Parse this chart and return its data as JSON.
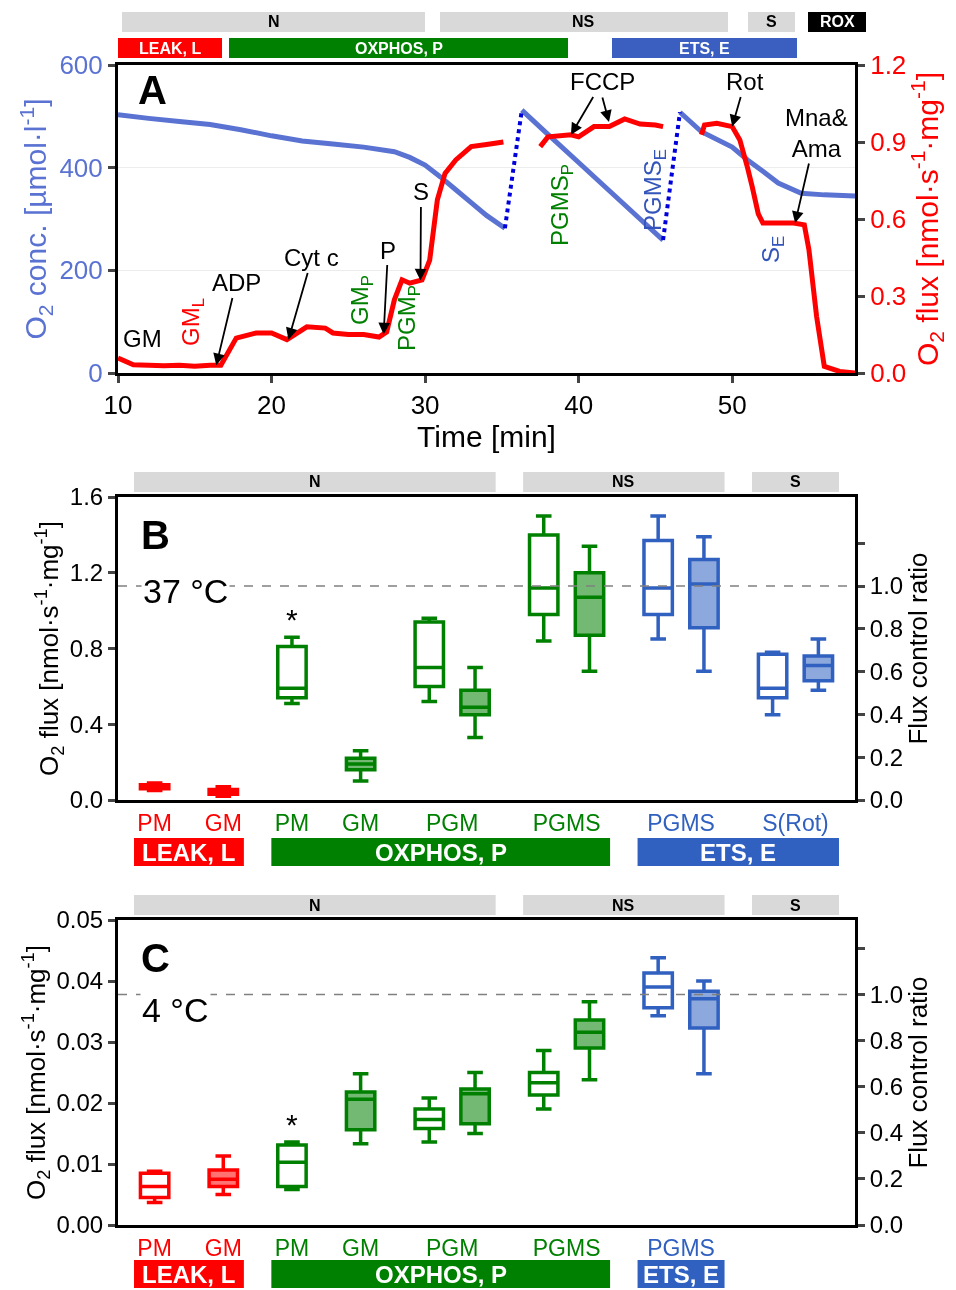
{
  "chart_data": [
    {
      "type": "line",
      "xlabel": "Time [min]",
      "ylabel": "O$_{2}$ conc. [µmol·l$^{-1}$]",
      "y2label": "O$_{2}$ flux [nmol·s$^{-1}$·mg$^{-1}$]",
      "xlim": [
        10,
        58
      ],
      "xticks": [
        10,
        20,
        30,
        40,
        50
      ],
      "ylim": [
        0,
        600
      ],
      "yticks": [
        0,
        200,
        400,
        600
      ],
      "y2lim": [
        0,
        1.2
      ],
      "y2ticks": [
        {
          "value": 0,
          "label": "0.0"
        },
        0.3,
        0.6,
        0.9,
        1.2
      ],
      "grid": "y",
      "series": [
        {
          "color": "#5a72d2",
          "x": [
            10,
            12,
            14,
            16,
            18,
            20,
            22,
            24,
            26,
            28,
            29,
            30,
            31,
            32,
            33,
            34,
            35.2,
            35.8,
            36.3,
            38,
            40,
            42,
            44,
            45.5,
            46,
            46.6,
            48,
            50,
            51,
            52,
            53,
            54.5,
            56,
            58
          ],
          "values": [
            503,
            496,
            490,
            484,
            474,
            462,
            452,
            446,
            440,
            431,
            420,
            405,
            382,
            357,
            332,
            307,
            282,
            null,
            512,
            465,
            410,
            355,
            300,
            259,
            null,
            508,
            470,
            440,
            415,
            393,
            370,
            350,
            347,
            345
          ]
        },
        {
          "color": "#0000dd",
          "line_style": "dotted",
          "x": [
            35.2,
            36.3,
            41,
            45.5,
            46.6
          ],
          "values": [
            282,
            512,
            null,
            259,
            508
          ]
        },
        {
          "color": "#ff0000",
          "axis": "y2",
          "x": [
            10,
            11,
            12,
            13,
            14,
            15,
            16,
            16.7,
            17.7,
            19,
            20,
            21,
            22.3,
            23.5,
            24,
            25,
            26,
            27,
            27.5,
            28,
            28.5,
            29,
            29.8,
            30.3,
            30.8,
            31.3,
            32,
            33,
            34,
            35.1,
            36.3,
            37.5,
            38,
            39.5,
            40,
            41,
            42,
            43,
            44,
            45,
            45.5,
            46.8,
            48,
            48.2,
            49,
            50,
            50.5,
            51,
            51.3,
            51.7,
            52,
            53,
            54,
            54.7,
            55,
            55.5,
            56,
            57,
            58
          ],
          "values": [
            0.058,
            0.032,
            0.03,
            0.028,
            0.03,
            0.026,
            0.03,
            0.03,
            0.136,
            0.156,
            0.156,
            0.13,
            0.18,
            0.175,
            0.156,
            0.15,
            0.15,
            0.14,
            0.16,
            0.285,
            0.363,
            0.35,
            0.363,
            0.44,
            0.675,
            0.778,
            0.83,
            0.882,
            0.89,
            0.9,
            null,
            0.882,
            0.92,
            0.928,
            0.92,
            0.96,
            0.96,
            0.99,
            0.97,
            0.966,
            0.96,
            null,
            0.928,
            0.966,
            0.973,
            0.96,
            0.908,
            0.8,
            0.727,
            0.62,
            0.584,
            0.584,
            0.584,
            0.577,
            0.48,
            0.22,
            0.026,
            0.006,
            0
          ]
        }
      ],
      "annotations": [
        "A",
        "GM",
        "GM$_{L}$",
        {
          "text": "ADP",
          "x": 16.4,
          "y": 15
        },
        {
          "text": "Cyt c",
          "x": 21.1,
          "y": 65
        },
        "GM$_{P}$",
        {
          "text": "P",
          "x": 27.3,
          "y": 75
        },
        "PGM$_{P}$",
        {
          "text": "S",
          "x": 29.7,
          "y": 180
        },
        "PGMS$_{P}$",
        {
          "text": "FCCP",
          "x": 39.5,
          "y": 464
        },
        "PGMS$_{E}$",
        {
          "text": "Rot",
          "x": 50,
          "y": 480
        },
        "S$_{E}$",
        {
          "text": "Mna&\nAma",
          "x": 54.1,
          "y": 292
        },
        "N",
        "NS",
        "S",
        "ROX",
        "LEAK, L",
        "OXPHOS, P",
        "ETS, E"
      ]
    },
    {
      "type": "box",
      "categories": [
        "PM",
        "GM",
        "PM",
        "GM",
        "PGM",
        "PGMS",
        "PGMS",
        "S(Rot)"
      ],
      "ylabel": "O$_{2}$ flux [nmol·s$^{-1}$·mg$^{-1}$]",
      "y2label": "Flux control ratio",
      "ylim": [
        0,
        1.6
      ],
      "yticks": [
        {
          "value": 0,
          "label": "0.0"
        },
        0.4,
        0.8,
        1.2,
        1.6
      ],
      "y2lim": [
        0,
        1.416
      ],
      "y2ticks": [
        {
          "value": 0,
          "label": "0.0"
        },
        0.2,
        0.4,
        0.6,
        0.8,
        {
          "value": 1,
          "label": "1.0"
        },
        {
          "value": 1.2,
          "label": null
        }
      ],
      "ref_lines": [
        {
          "axis": "y2",
          "value": 1,
          "color": "#808080",
          "line_style": "dashed"
        }
      ],
      "series": [
        {
          "colors": [
            "#ff0000",
            "#ff0000",
            "#008000",
            "#008000",
            "#008000",
            "#008000",
            "#3060c0",
            "#3060c0"
          ],
          "boxes": [
            {
              "low": 0.05,
              "q1": 0.06,
              "median": 0.07,
              "q3": 0.08,
              "high": 0.09
            },
            null,
            {
              "low": 0.51,
              "q1": 0.54,
              "median": 0.59,
              "q3": 0.81,
              "high": 0.86
            },
            null,
            {
              "low": 0.52,
              "q1": 0.6,
              "median": 0.7,
              "q3": 0.94,
              "high": 0.96
            },
            {
              "low": 0.84,
              "q1": 0.98,
              "median": 1.12,
              "q3": 1.4,
              "high": 1.5
            },
            {
              "low": 0.85,
              "q1": 0.98,
              "median": 1.12,
              "q3": 1.37,
              "high": 1.5
            },
            {
              "low": 0.45,
              "q1": 0.54,
              "median": 0.59,
              "q3": 0.77,
              "high": 0.78
            }
          ]
        },
        {
          "colors": [
            "#ff0000",
            "#ff0000",
            "#008000",
            "#008000",
            "#008000",
            "#008000",
            "#3060c0",
            "#3060c0"
          ],
          "boxes": [
            null,
            {
              "low": 0.02,
              "q1": 0.03,
              "median": 0.045,
              "q3": 0.055,
              "high": 0.07
            },
            null,
            {
              "low": 0.1,
              "q1": 0.16,
              "median": 0.19,
              "q3": 0.22,
              "high": 0.26
            },
            {
              "low": 0.33,
              "q1": 0.45,
              "median": 0.49,
              "q3": 0.58,
              "high": 0.7
            },
            {
              "low": 0.68,
              "q1": 0.87,
              "median": 1.07,
              "q3": 1.2,
              "high": 1.34
            },
            {
              "low": 0.68,
              "q1": 0.91,
              "median": 1.14,
              "q3": 1.27,
              "high": 1.39
            },
            {
              "low": 0.58,
              "q1": 0.63,
              "median": 0.71,
              "q3": 0.76,
              "high": 0.85
            }
          ]
        }
      ],
      "annotations": [
        "B",
        "37 °C",
        "*",
        "N",
        "NS",
        "S",
        "LEAK, L",
        "OXPHOS, P",
        "ETS, E"
      ]
    },
    {
      "type": "box",
      "categories": [
        "PM",
        "GM",
        "PM",
        "GM",
        "PGM",
        "PGMS",
        "PGMS",
        null
      ],
      "ylabel": "O$_{2}$ flux [nmol·s$^{-1}$·mg$^{-1}$]",
      "y2label": "Flux control ratio",
      "ylim": [
        0,
        0.05
      ],
      "yticks": [
        {
          "value": 0,
          "label": "0.00"
        },
        0.01,
        0.02,
        0.03,
        0.04,
        0.05
      ],
      "y2lim": [
        0,
        1.323
      ],
      "y2ticks": [
        {
          "value": 0,
          "label": "0.0"
        },
        0.2,
        0.4,
        0.6,
        0.8,
        {
          "value": 1,
          "label": "1.0"
        },
        {
          "value": 1.2,
          "label": null
        }
      ],
      "ref_lines": [
        {
          "axis": "y2",
          "value": 1,
          "color": "#808080",
          "line_style": "dashed"
        }
      ],
      "series": [
        {
          "colors": [
            "#ff0000",
            "#ff0000",
            "#008000",
            "#008000",
            "#008000",
            "#008000",
            "#3060c0",
            "#3060c0"
          ],
          "boxes": [
            {
              "low": 0.0037,
              "q1": 0.0045,
              "median": 0.0063,
              "q3": 0.0085,
              "high": 0.0088
            },
            null,
            {
              "low": 0.0058,
              "q1": 0.0063,
              "median": 0.0103,
              "q3": 0.0131,
              "high": 0.0136
            },
            null,
            {
              "low": 0.0136,
              "q1": 0.0158,
              "median": 0.0173,
              "q3": 0.019,
              "high": 0.0208
            },
            {
              "low": 0.019,
              "q1": 0.0213,
              "median": 0.0233,
              "q3": 0.025,
              "high": 0.0286
            },
            {
              "low": 0.0343,
              "q1": 0.0356,
              "median": 0.039,
              "q3": 0.0413,
              "high": 0.0438
            },
            null
          ]
        },
        {
          "colors": [
            "#ff0000",
            "#ff0000",
            "#008000",
            "#008000",
            "#008000",
            "#008000",
            "#3060c0",
            "#3060c0"
          ],
          "boxes": [
            null,
            {
              "low": 0.005,
              "q1": 0.0063,
              "median": 0.0075,
              "q3": 0.009,
              "high": 0.0113
            },
            null,
            {
              "low": 0.0133,
              "q1": 0.0156,
              "median": 0.0206,
              "q3": 0.0218,
              "high": 0.0248
            },
            {
              "low": 0.015,
              "q1": 0.0166,
              "median": 0.0215,
              "q3": 0.0223,
              "high": 0.025
            },
            {
              "low": 0.0238,
              "q1": 0.029,
              "median": 0.0316,
              "q3": 0.0336,
              "high": 0.0366
            },
            {
              "low": 0.0248,
              "q1": 0.0323,
              "median": 0.0371,
              "q3": 0.0383,
              "high": 0.04
            },
            null
          ]
        }
      ],
      "annotations": [
        "C",
        "4 °C",
        "*",
        "N",
        "NS",
        "S",
        "LEAK, L",
        "OXPHOS, P",
        "ETS, E"
      ]
    }
  ]
}
